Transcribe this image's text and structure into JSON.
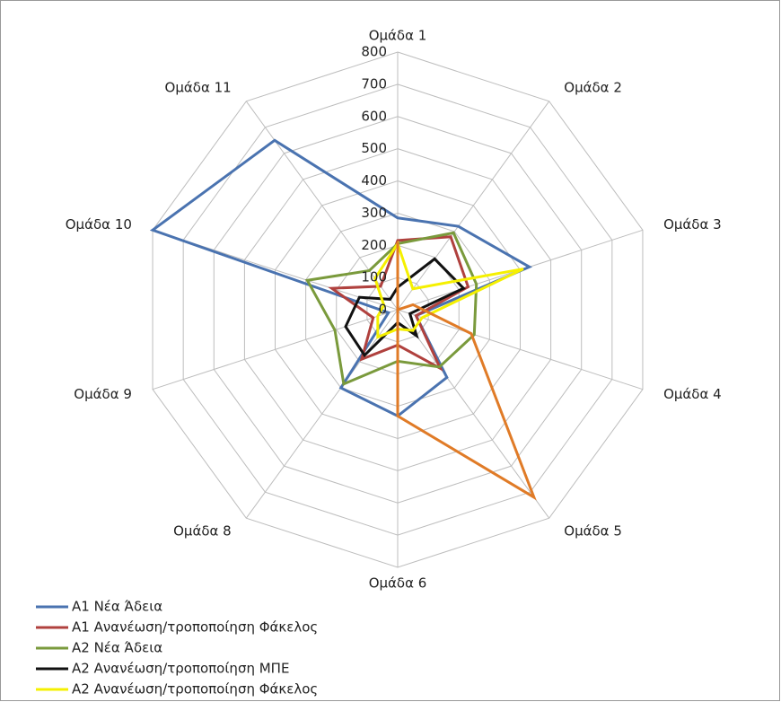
{
  "chart_data": {
    "type": "radar",
    "categories": [
      "Ομάδα 1",
      "Ομάδα 2",
      "Ομάδα 3",
      "Ομάδα 4",
      "Ομάδα 5",
      "Ομάδα 6",
      "Ομάδα 8",
      "Ομάδα 9",
      "Ομάδα 10",
      "Ομάδα 11"
    ],
    "ylim": [
      0,
      800
    ],
    "yticks": [
      0,
      100,
      200,
      300,
      400,
      500,
      600,
      700,
      800
    ],
    "grid": true,
    "legend": "bottom-left",
    "series": [
      {
        "name": "Α1 Νέα Άδεια",
        "color": "#4a73b0",
        "values": [
          285,
          320,
          430,
          60,
          260,
          330,
          300,
          30,
          800,
          650
        ]
      },
      {
        "name": "Α1 Ανανέωση/τροποποίηση Φάκελος",
        "color": "#b0413e",
        "values": [
          215,
          280,
          230,
          60,
          225,
          110,
          190,
          80,
          215,
          90
        ]
      },
      {
        "name": "Α2 Νέα Άδεια",
        "color": "#7a9a3c",
        "values": [
          205,
          295,
          257,
          250,
          220,
          160,
          285,
          205,
          295,
          150
        ]
      },
      {
        "name": "Α2 Ανανέωση/τροποποίηση ΜΠΕ",
        "color": "#111111",
        "values": [
          70,
          195,
          215,
          40,
          100,
          40,
          175,
          170,
          125,
          40
        ]
      },
      {
        "name": "Α2 Ανανέωση/τροποποίηση Φάκελος",
        "color": "#f5f000",
        "values": [
          205,
          80,
          410,
          80,
          80,
          60,
          105,
          65,
          45,
          120
        ]
      },
      {
        "color": "#e07b27",
        "values": [
          210,
          0,
          50,
          240,
          720,
          330,
          0,
          0,
          0,
          0
        ]
      }
    ]
  }
}
